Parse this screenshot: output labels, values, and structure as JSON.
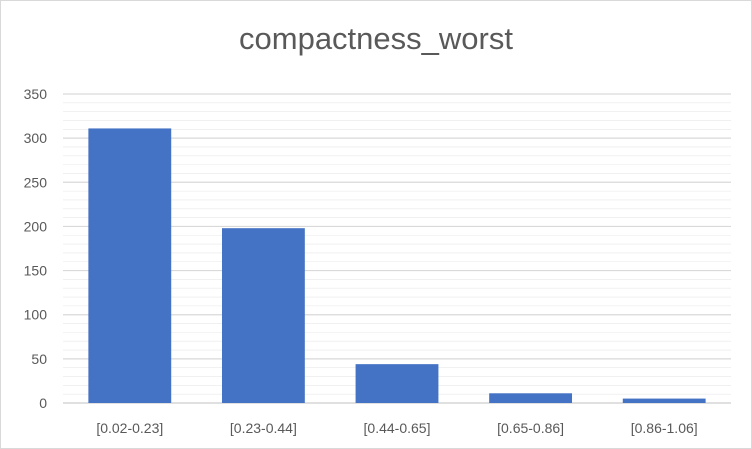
{
  "chart_data": {
    "type": "bar",
    "title": "compactness_worst",
    "categories": [
      "[0.02-0.23]",
      "[0.23-0.44]",
      "[0.44-0.65]",
      "[0.65-0.86]",
      "[0.86-1.06]"
    ],
    "values": [
      311,
      198,
      44,
      11,
      5
    ],
    "ylim": [
      0,
      350
    ],
    "yticks": [
      "0",
      "50",
      "100",
      "150",
      "200",
      "250",
      "300",
      "350"
    ],
    "grid": true,
    "colors": {
      "bar": "#4472c4",
      "grid": "#d9d9d9",
      "text": "#595959"
    }
  }
}
